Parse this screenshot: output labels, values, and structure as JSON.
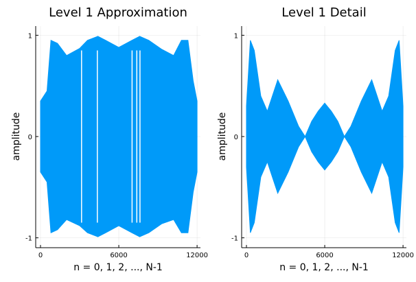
{
  "chart_data": [
    {
      "type": "area",
      "title": "Level 1 Approximation",
      "xlabel": "n = 0, 1, 2, ..., N-1",
      "ylabel": "amplitude",
      "xlim": [
        0,
        12100
      ],
      "ylim": [
        -1.05,
        1.05
      ],
      "xticks": [
        0,
        6000,
        12000
      ],
      "xtick_labels": [
        "0",
        "6000",
        "12000"
      ],
      "yticks": [
        -1,
        0,
        1
      ],
      "ytick_labels": [
        "-1",
        "0",
        "1"
      ],
      "grid": true,
      "color": "#009af9",
      "series": [
        {
          "x": [
            0,
            500,
            800,
            1300,
            2000,
            3000,
            3600,
            4400,
            5000,
            6000,
            7000,
            7600,
            8300,
            9300,
            10200,
            10800,
            11300,
            11700,
            12000
          ],
          "upper": [
            0.35,
            0.45,
            0.95,
            0.92,
            0.8,
            0.87,
            0.95,
            0.99,
            0.95,
            0.88,
            0.95,
            0.99,
            0.95,
            0.86,
            0.8,
            0.95,
            0.95,
            0.55,
            0.35
          ],
          "lower": [
            -0.35,
            -0.45,
            -0.95,
            -0.92,
            -0.82,
            -0.88,
            -0.95,
            -0.99,
            -0.95,
            -0.88,
            -0.95,
            -0.99,
            -0.95,
            -0.86,
            -0.82,
            -0.95,
            -0.95,
            -0.55,
            -0.35
          ]
        }
      ]
    },
    {
      "type": "area",
      "title": "Level 1 Detail",
      "xlabel": "n = 0, 1, 2, ..., N-1",
      "ylabel": "amplitude",
      "xlim": [
        0,
        12100
      ],
      "ylim": [
        -1.05,
        1.05
      ],
      "xticks": [
        0,
        6000,
        12000
      ],
      "xtick_labels": [
        "0",
        "6000",
        "12000"
      ],
      "yticks": [
        -1,
        0,
        1
      ],
      "ytick_labels": [
        "-1",
        "0",
        "1"
      ],
      "grid": true,
      "color": "#009af9",
      "series": [
        {
          "x": [
            0,
            300,
            600,
            1100,
            1600,
            2400,
            3200,
            4000,
            4500,
            5000,
            5500,
            6000,
            6500,
            7000,
            7500,
            8000,
            8800,
            9600,
            10400,
            10900,
            11400,
            11700,
            12000
          ],
          "upper": [
            0.3,
            0.95,
            0.85,
            0.4,
            0.25,
            0.56,
            0.35,
            0.1,
            0.0,
            0.15,
            0.25,
            0.33,
            0.25,
            0.15,
            0.0,
            0.1,
            0.35,
            0.56,
            0.25,
            0.4,
            0.85,
            0.95,
            0.3
          ],
          "lower": [
            -0.3,
            -0.95,
            -0.85,
            -0.4,
            -0.25,
            -0.56,
            -0.35,
            -0.1,
            0.0,
            -0.15,
            -0.25,
            -0.33,
            -0.25,
            -0.15,
            0.0,
            -0.1,
            -0.35,
            -0.56,
            -0.25,
            -0.4,
            -0.85,
            -0.95,
            -0.3
          ]
        }
      ]
    }
  ]
}
